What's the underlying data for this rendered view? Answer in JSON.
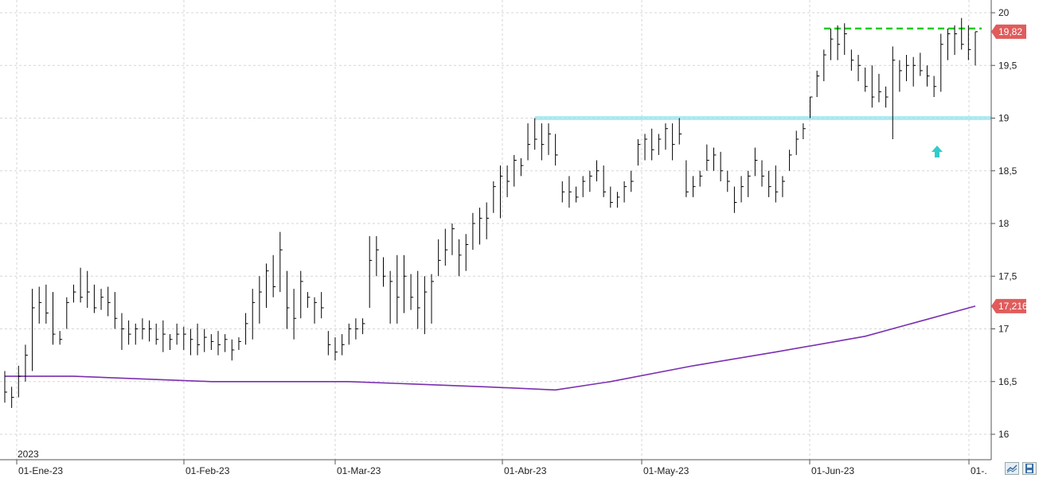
{
  "chart_data": {
    "type": "ohlc",
    "title": "",
    "xlabel": "",
    "ylabel": "",
    "ylim": [
      15.75,
      20.1
    ],
    "y_ticks": [
      "20",
      "19,5",
      "19",
      "18,5",
      "18",
      "17,5",
      "17",
      "16,5",
      "16"
    ],
    "y_tick_values": [
      20,
      19.5,
      19,
      18.5,
      18,
      17.5,
      17,
      16.5,
      16
    ],
    "x_ticks": [
      "01-Ene-23",
      "01-Feb-23",
      "01-Mar-23",
      "01-Abr-23",
      "01-May-23",
      "01-Jun-23",
      "01-."
    ],
    "year_label": "2023",
    "grid": true,
    "price_badge": "19,82",
    "ma_badge": "17,216",
    "resistance_level": 19.85,
    "support_level": 19.0,
    "last_price": 19.82,
    "last_ma": 17.216,
    "series": [
      {
        "type": "ohlc",
        "high": [
          16.6,
          16.45,
          16.65,
          16.85,
          17.38,
          17.4,
          17.42,
          17.35,
          16.98,
          17.3,
          17.42,
          17.58,
          17.55,
          17.42,
          17.38,
          17.4,
          17.35,
          17.15,
          17.08,
          17.05,
          17.1,
          17.08,
          17.05,
          17.08,
          16.95,
          17.05,
          17.02,
          17.0,
          17.05,
          17.0,
          16.95,
          16.98,
          16.95,
          16.9,
          16.92,
          17.15,
          17.38,
          17.5,
          17.62,
          17.7,
          17.92,
          17.55,
          17.38,
          17.55,
          17.35,
          17.3,
          17.35,
          16.98,
          16.92,
          16.95,
          17.05,
          17.1,
          17.1,
          17.88,
          17.88,
          17.68,
          17.55,
          17.7,
          17.7,
          17.52,
          17.55,
          17.5,
          17.52,
          17.85,
          17.95,
          18.0,
          17.85,
          17.9,
          18.1,
          18.15,
          18.2,
          18.4,
          18.55,
          18.55,
          18.65,
          18.62,
          18.95,
          19.0,
          18.95,
          18.95,
          18.85,
          18.4,
          18.45,
          18.35,
          18.45,
          18.5,
          18.6,
          18.55,
          18.35,
          18.3,
          18.4,
          18.5,
          18.8,
          18.85,
          18.9,
          18.85,
          18.95,
          18.95,
          19.0,
          18.6,
          18.45,
          18.5,
          18.75,
          18.72,
          18.68,
          18.5,
          18.35,
          18.45,
          18.5,
          18.72,
          18.6,
          18.5,
          18.55,
          18.45,
          18.7,
          18.88,
          18.95,
          19.2,
          19.45,
          19.65,
          19.85,
          19.88,
          19.9,
          19.65,
          19.6,
          19.48,
          19.5,
          19.42,
          19.3,
          19.68,
          19.55,
          19.6,
          19.58,
          19.62,
          19.5,
          19.4,
          19.8,
          19.85,
          19.88,
          19.95,
          19.88,
          19.82
        ]
      },
      {
        "type": "ohlc",
        "low": [
          16.3,
          16.25,
          16.35,
          16.5,
          16.6,
          17.05,
          17.05,
          16.85,
          16.85,
          17.0,
          17.25,
          17.25,
          17.2,
          17.15,
          17.18,
          17.12,
          17.0,
          16.8,
          16.85,
          16.85,
          16.9,
          16.88,
          16.85,
          16.78,
          16.8,
          16.85,
          16.8,
          16.75,
          16.75,
          16.78,
          16.8,
          16.75,
          16.78,
          16.7,
          16.8,
          16.85,
          16.9,
          17.05,
          17.2,
          17.3,
          17.35,
          17.0,
          16.9,
          17.1,
          17.2,
          17.05,
          17.1,
          16.75,
          16.7,
          16.75,
          16.85,
          16.9,
          16.95,
          17.2,
          17.5,
          17.4,
          17.05,
          17.05,
          17.15,
          17.18,
          17.0,
          16.95,
          17.05,
          17.5,
          17.6,
          17.7,
          17.5,
          17.55,
          17.75,
          17.8,
          17.85,
          18.1,
          18.05,
          18.25,
          18.35,
          18.45,
          18.6,
          18.7,
          18.6,
          18.65,
          18.55,
          18.2,
          18.15,
          18.2,
          18.25,
          18.3,
          18.4,
          18.25,
          18.15,
          18.15,
          18.2,
          18.3,
          18.55,
          18.6,
          18.6,
          18.65,
          18.7,
          18.6,
          18.75,
          18.25,
          18.25,
          18.35,
          18.5,
          18.5,
          18.4,
          18.3,
          18.1,
          18.2,
          18.25,
          18.45,
          18.35,
          18.25,
          18.2,
          18.25,
          18.5,
          18.65,
          18.8,
          19.0,
          19.2,
          19.35,
          19.55,
          19.55,
          19.6,
          19.45,
          19.35,
          19.25,
          19.1,
          19.15,
          19.1,
          18.8,
          19.25,
          19.35,
          19.3,
          19.4,
          19.3,
          19.2,
          19.25,
          19.55,
          19.6,
          19.65,
          19.55,
          19.5
        ]
      },
      {
        "type": "ohlc",
        "close": [
          16.4,
          16.35,
          16.55,
          16.75,
          17.2,
          17.25,
          17.15,
          16.95,
          16.9,
          17.25,
          17.35,
          17.3,
          17.35,
          17.2,
          17.3,
          17.25,
          17.1,
          17.0,
          16.95,
          17.0,
          17.0,
          17.0,
          16.9,
          16.95,
          16.9,
          16.95,
          16.95,
          16.9,
          16.85,
          16.92,
          16.88,
          16.85,
          16.9,
          16.8,
          16.88,
          17.05,
          17.25,
          17.35,
          17.55,
          17.4,
          17.75,
          17.2,
          17.1,
          17.45,
          17.3,
          17.25,
          17.2,
          16.85,
          16.78,
          16.85,
          17.0,
          17.0,
          17.05,
          17.65,
          17.75,
          17.5,
          17.45,
          17.3,
          17.5,
          17.3,
          17.2,
          17.35,
          17.45,
          17.65,
          17.75,
          17.95,
          17.7,
          17.8,
          18.0,
          18.05,
          18.05,
          18.35,
          18.45,
          18.4,
          18.6,
          18.55,
          18.75,
          18.8,
          18.75,
          18.85,
          18.65,
          18.3,
          18.3,
          18.25,
          18.4,
          18.45,
          18.5,
          18.3,
          18.2,
          18.25,
          18.35,
          18.4,
          18.75,
          18.8,
          18.7,
          18.8,
          18.9,
          18.75,
          18.85,
          18.3,
          18.35,
          18.45,
          18.6,
          18.65,
          18.5,
          18.4,
          18.2,
          18.35,
          18.45,
          18.6,
          18.45,
          18.35,
          18.3,
          18.4,
          18.65,
          18.8,
          18.9,
          19.2,
          19.4,
          19.6,
          19.75,
          19.7,
          19.8,
          19.55,
          19.5,
          19.3,
          19.2,
          19.25,
          19.2,
          19.55,
          19.45,
          19.5,
          19.5,
          19.45,
          19.4,
          19.3,
          19.7,
          19.8,
          19.8,
          19.7,
          19.65,
          19.82
        ]
      },
      {
        "name": "",
        "type": "line",
        "x": [
          0,
          10,
          30,
          50,
          70,
          80,
          88,
          100,
          112,
          125,
          141
        ],
        "values": [
          16.55,
          16.55,
          16.5,
          16.5,
          16.45,
          16.42,
          16.5,
          16.65,
          16.78,
          16.93,
          17.216
        ]
      }
    ],
    "colors": {
      "bars": "#000000",
      "ma": "#7a2fb0",
      "resistance": "#22cc22",
      "support": "#8fe3ee",
      "badge": "#e05c5c",
      "arrow": "#33cccc"
    }
  },
  "toolbar": {
    "icons": [
      "chart-lines-icon",
      "save-disk-icon"
    ]
  }
}
